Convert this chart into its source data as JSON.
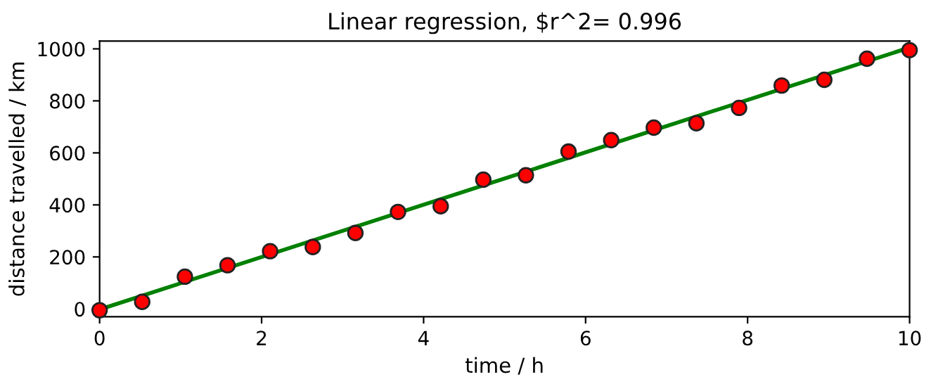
{
  "chart_data": {
    "type": "scatter",
    "title": "Linear regression, $r^2= 0.996",
    "xlabel": "time / h",
    "ylabel": "distance travelled / km",
    "x": [
      0,
      0.526,
      1.053,
      1.579,
      2.105,
      2.632,
      3.158,
      3.684,
      4.211,
      4.737,
      5.263,
      5.789,
      6.316,
      6.842,
      7.368,
      7.895,
      8.421,
      8.947,
      9.474,
      10
    ],
    "series": [
      {
        "color": "#ff0000",
        "marker": "circle",
        "values": [
          -5,
          27,
          124,
          168,
          222,
          238,
          292,
          373,
          395,
          497,
          514,
          605,
          649,
          697,
          714,
          773,
          859,
          881,
          962,
          995
        ]
      },
      {
        "type": "line",
        "color": "#008000",
        "marker": "none",
        "line_style": "solid",
        "x": [
          0,
          10
        ],
        "values": [
          -2,
          1005
        ]
      }
    ],
    "xlim": [
      0,
      10
    ],
    "ylim": [
      -30,
      1030
    ],
    "xticks": [
      0,
      2,
      4,
      6,
      8,
      10
    ],
    "yticks": [
      0,
      200,
      400,
      600,
      800,
      1000
    ],
    "grid": false,
    "legend": false
  }
}
